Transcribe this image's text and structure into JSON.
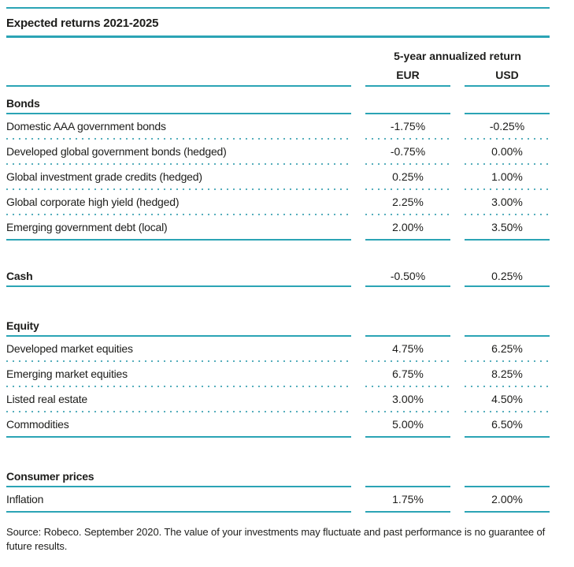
{
  "title": "Expected returns 2021-2025",
  "header": {
    "group_label": "5-year annualized return",
    "columns": [
      "EUR",
      "USD"
    ]
  },
  "sections": [
    {
      "label": "Bonds",
      "rows": [
        {
          "label": "Domestic AAA government bonds",
          "eur": "-1.75%",
          "usd": "-0.25%"
        },
        {
          "label": "Developed global government bonds (hedged)",
          "eur": "-0.75%",
          "usd": "0.00%"
        },
        {
          "label": "Global investment grade credits (hedged)",
          "eur": "0.25%",
          "usd": "1.00%"
        },
        {
          "label": "Global corporate high yield (hedged)",
          "eur": "2.25%",
          "usd": "3.00%"
        },
        {
          "label": "Emerging government debt (local)",
          "eur": "2.00%",
          "usd": "3.50%"
        }
      ]
    },
    {
      "label": "Cash",
      "eur": "-0.50%",
      "usd": "0.25%",
      "rows": []
    },
    {
      "label": "Equity",
      "rows": [
        {
          "label": "Developed market equities",
          "eur": "4.75%",
          "usd": "6.25%"
        },
        {
          "label": "Emerging market equities",
          "eur": "6.75%",
          "usd": "8.25%"
        },
        {
          "label": "Listed real estate",
          "eur": "3.00%",
          "usd": "4.50%"
        },
        {
          "label": "Commodities",
          "eur": "5.00%",
          "usd": "6.50%"
        }
      ]
    },
    {
      "label": "Consumer prices",
      "rows": [
        {
          "label": "Inflation",
          "eur": "1.75%",
          "usd": "2.00%"
        }
      ]
    }
  ],
  "source": "Source: Robeco. September 2020. The value of your investments may fluctuate and past performance is no guarantee of future results.",
  "colors": {
    "accent": "#2ba4b5",
    "dotted": "#55aebc",
    "text": "#1d1d1b"
  }
}
